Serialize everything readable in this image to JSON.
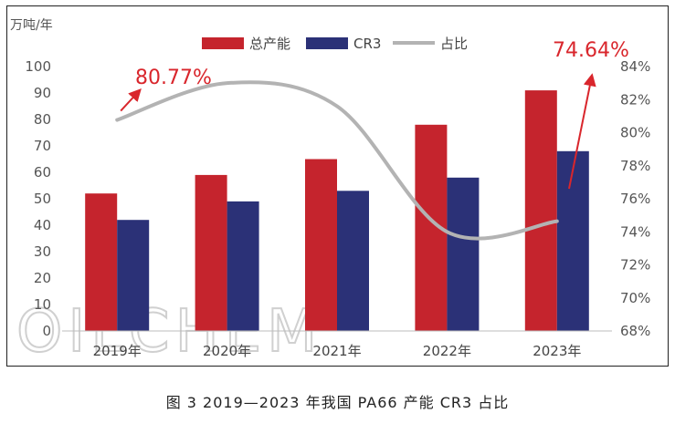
{
  "chart_data": {
    "type": "bar",
    "unit_label": "万吨/年",
    "categories": [
      "2019年",
      "2020年",
      "2021年",
      "2022年",
      "2023年"
    ],
    "series": [
      {
        "name": "总产能",
        "values": [
          52,
          59,
          65,
          78,
          91
        ],
        "color": "#c5242d",
        "axis": "left"
      },
      {
        "name": "CR3",
        "values": [
          42,
          49,
          53,
          58,
          68
        ],
        "color": "#2b3177",
        "axis": "left"
      },
      {
        "name": "占比",
        "type": "line",
        "values": [
          80.77,
          83.0,
          81.6,
          74.0,
          74.64
        ],
        "color": "#b3b3b3",
        "axis": "right"
      }
    ],
    "yleft": {
      "ylim": [
        0,
        100
      ],
      "ticks": [
        "0",
        "10",
        "20",
        "30",
        "40",
        "50",
        "60",
        "70",
        "80",
        "90",
        "100"
      ]
    },
    "yright": {
      "ylim": [
        68,
        84
      ],
      "ticks": [
        "68%",
        "70%",
        "72%",
        "74%",
        "76%",
        "78%",
        "80%",
        "82%",
        "84%"
      ]
    },
    "annotations": [
      {
        "text": "80.77%",
        "color": "#d9262c"
      },
      {
        "text": "74.64%",
        "color": "#d9262c"
      }
    ],
    "watermark": "OILCHEM",
    "grid": false,
    "legend": "top-center"
  },
  "caption": "图 3 2019—2023 年我国 PA66 产能 CR3 占比"
}
